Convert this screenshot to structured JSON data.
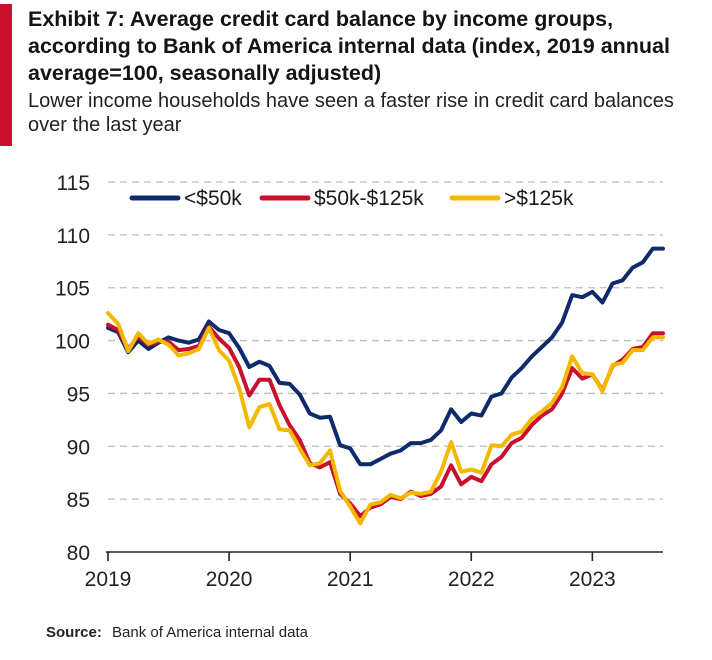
{
  "header": {
    "title": "Exhibit 7: Average credit card balance by income groups, according to Bank  of America internal data (index, 2019 annual average=100, seasonally adjusted)",
    "subtitle": "Lower income households have seen a faster rise in credit card balances over the last year"
  },
  "footer": {
    "source_label": "Source:",
    "source_text": "Bank of America internal data"
  },
  "colors": {
    "accent": "#c8102e",
    "grid": "#bdbdbd",
    "axis": "#222222"
  },
  "chart_data": {
    "type": "line",
    "title": "",
    "xlabel": "",
    "ylabel": "",
    "ylim": [
      80,
      115
    ],
    "yticks": [
      80,
      85,
      90,
      95,
      100,
      105,
      110,
      115
    ],
    "xlim": [
      "2019-01",
      "2023-08"
    ],
    "xticks": [
      "2019",
      "2020",
      "2021",
      "2022",
      "2023"
    ],
    "grid": "horizontal dashed",
    "legend_position": "top",
    "x": [
      "2019-01",
      "2019-02",
      "2019-03",
      "2019-04",
      "2019-05",
      "2019-06",
      "2019-07",
      "2019-08",
      "2019-09",
      "2019-10",
      "2019-11",
      "2019-12",
      "2020-01",
      "2020-02",
      "2020-03",
      "2020-04",
      "2020-05",
      "2020-06",
      "2020-07",
      "2020-08",
      "2020-09",
      "2020-10",
      "2020-11",
      "2020-12",
      "2021-01",
      "2021-02",
      "2021-03",
      "2021-04",
      "2021-05",
      "2021-06",
      "2021-07",
      "2021-08",
      "2021-09",
      "2021-10",
      "2021-11",
      "2021-12",
      "2022-01",
      "2022-02",
      "2022-03",
      "2022-04",
      "2022-05",
      "2022-06",
      "2022-07",
      "2022-08",
      "2022-09",
      "2022-10",
      "2022-11",
      "2022-12",
      "2023-01",
      "2023-02",
      "2023-03",
      "2023-04",
      "2023-05",
      "2023-06",
      "2023-07",
      "2023-08"
    ],
    "series": [
      {
        "name": "<$50k",
        "color": "#0f2a6b",
        "values": [
          101.2,
          100.8,
          98.9,
          100.0,
          99.2,
          99.8,
          100.3,
          100.0,
          99.8,
          100.1,
          101.8,
          101.0,
          100.7,
          99.3,
          97.5,
          98.0,
          97.6,
          96.0,
          95.9,
          94.9,
          93.1,
          92.7,
          92.8,
          90.1,
          89.8,
          88.3,
          88.3,
          88.8,
          89.3,
          89.6,
          90.3,
          90.3,
          90.6,
          91.5,
          93.5,
          92.3,
          93.1,
          92.9,
          94.7,
          95.0,
          96.5,
          97.4,
          98.5,
          99.4,
          100.3,
          101.7,
          104.3,
          104.1,
          104.6,
          103.6,
          105.4,
          105.7,
          106.9,
          107.4,
          108.7,
          108.7
        ]
      },
      {
        "name": "$50k-$125k",
        "color": "#c8102e",
        "values": [
          101.5,
          101.0,
          99.2,
          100.4,
          99.6,
          99.9,
          99.9,
          99.1,
          99.2,
          99.5,
          101.3,
          100.2,
          99.3,
          97.5,
          94.8,
          96.3,
          96.3,
          93.9,
          92.0,
          90.6,
          88.4,
          88.0,
          88.5,
          85.5,
          84.6,
          83.4,
          84.2,
          84.5,
          85.2,
          85.0,
          85.7,
          85.3,
          85.5,
          86.2,
          88.2,
          86.4,
          87.1,
          86.7,
          88.3,
          89.0,
          90.3,
          90.8,
          92.0,
          92.9,
          93.5,
          95.0,
          97.4,
          96.4,
          96.8,
          95.3,
          97.6,
          98.2,
          99.2,
          99.4,
          100.7,
          100.7
        ]
      },
      {
        "name": ">$125k",
        "color": "#f5b800",
        "values": [
          102.6,
          101.6,
          99.0,
          100.7,
          99.7,
          100.1,
          99.6,
          98.6,
          98.8,
          99.2,
          101.2,
          99.1,
          98.1,
          95.5,
          91.8,
          93.7,
          94.0,
          91.6,
          91.5,
          89.8,
          88.2,
          88.4,
          89.6,
          85.8,
          84.3,
          82.7,
          84.5,
          84.7,
          85.4,
          85.1,
          85.6,
          85.5,
          85.7,
          87.6,
          90.4,
          87.6,
          87.8,
          87.5,
          90.1,
          90.0,
          91.1,
          91.4,
          92.6,
          93.3,
          94.1,
          95.6,
          98.5,
          96.9,
          96.8,
          95.2,
          97.7,
          97.9,
          99.1,
          99.1,
          100.3,
          100.3
        ]
      }
    ]
  }
}
